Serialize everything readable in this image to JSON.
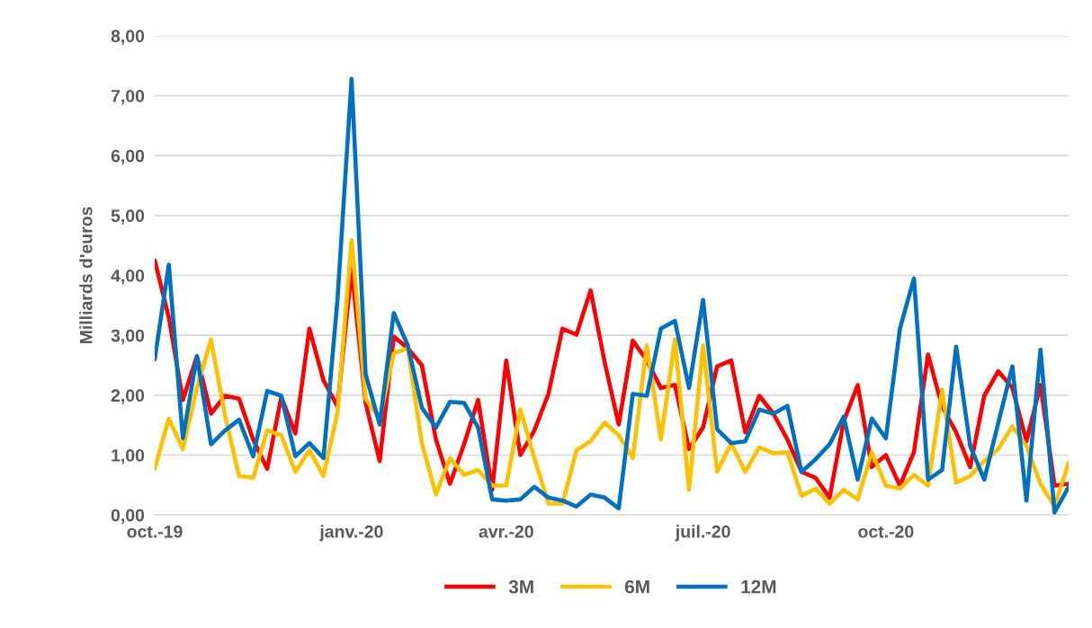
{
  "chart_data": {
    "type": "line",
    "ylabel": "Milliards d'euros",
    "categories": [
      "oct.-19",
      null,
      null,
      null,
      null,
      null,
      null,
      null,
      null,
      null,
      null,
      null,
      null,
      null,
      "janv.-20",
      null,
      null,
      null,
      null,
      null,
      null,
      null,
      null,
      null,
      null,
      "avr.-20",
      null,
      null,
      null,
      null,
      null,
      null,
      null,
      null,
      null,
      null,
      null,
      null,
      null,
      "juil.-20",
      null,
      null,
      null,
      null,
      null,
      null,
      null,
      null,
      null,
      null,
      null,
      null,
      "oct.-20",
      null,
      null,
      null,
      null,
      null,
      null,
      null,
      null,
      null,
      null,
      null,
      null,
      null
    ],
    "series": [
      {
        "name": "3M",
        "color": "#ff0000",
        "values": [
          4.25,
          3.3,
          1.92,
          2.65,
          1.69,
          1.99,
          1.94,
          1.26,
          0.77,
          1.97,
          1.36,
          3.11,
          2.25,
          1.81,
          4.1,
          1.87,
          0.9,
          2.98,
          2.78,
          2.5,
          1.26,
          0.52,
          1.18,
          1.92,
          0.42,
          2.58,
          1.0,
          1.41,
          2.02,
          3.11,
          3.01,
          3.75,
          2.55,
          1.51,
          2.91,
          2.58,
          2.12,
          2.17,
          1.1,
          1.46,
          2.48,
          2.58,
          1.38,
          1.99,
          1.69,
          1.26,
          0.72,
          0.62,
          0.29,
          1.56,
          2.17,
          0.8,
          1.0,
          0.49,
          1.05,
          2.68,
          1.81,
          1.38,
          0.8,
          1.99,
          2.4,
          2.12,
          1.23,
          2.17,
          0.49,
          0.52
        ]
      },
      {
        "name": "6M",
        "color": "#ffc000",
        "values": [
          0.77,
          1.61,
          1.1,
          2.12,
          2.93,
          1.66,
          0.65,
          0.62,
          1.41,
          1.33,
          0.72,
          1.08,
          0.65,
          1.71,
          4.59,
          1.94,
          1.61,
          2.7,
          2.78,
          1.2,
          0.34,
          0.95,
          0.67,
          0.75,
          0.49,
          0.49,
          1.76,
          0.95,
          0.19,
          0.19,
          1.08,
          1.23,
          1.54,
          1.33,
          0.95,
          2.83,
          1.26,
          2.93,
          0.42,
          2.83,
          0.72,
          1.2,
          0.72,
          1.13,
          1.03,
          1.05,
          0.32,
          0.44,
          0.19,
          0.42,
          0.26,
          1.05,
          0.49,
          0.44,
          0.67,
          0.49,
          2.09,
          0.54,
          0.65,
          0.9,
          1.1,
          1.48,
          1.15,
          0.52,
          0.14,
          0.87
        ]
      },
      {
        "name": "12M",
        "color": "#0070c0",
        "values": [
          2.6,
          4.18,
          1.28,
          2.65,
          1.18,
          1.41,
          1.59,
          0.98,
          2.07,
          1.99,
          0.98,
          1.2,
          0.95,
          3.6,
          7.28,
          2.35,
          1.51,
          3.37,
          2.83,
          1.79,
          1.46,
          1.89,
          1.87,
          1.46,
          0.26,
          0.24,
          0.26,
          0.47,
          0.29,
          0.24,
          0.14,
          0.34,
          0.29,
          0.11,
          2.02,
          1.99,
          3.11,
          3.24,
          2.12,
          3.59,
          1.43,
          1.2,
          1.23,
          1.76,
          1.69,
          1.82,
          0.72,
          0.93,
          1.18,
          1.64,
          0.59,
          1.61,
          1.28,
          3.11,
          3.95,
          0.59,
          0.75,
          2.81,
          1.15,
          0.59,
          1.54,
          2.48,
          0.24,
          2.76,
          0.04,
          0.47
        ]
      }
    ],
    "ylim": [
      0,
      8
    ],
    "yticks": [
      {
        "value": 0,
        "label": "0,00"
      },
      {
        "value": 1,
        "label": "1,00"
      },
      {
        "value": 2,
        "label": "2,00"
      },
      {
        "value": 3,
        "label": "3,00"
      },
      {
        "value": 4,
        "label": "4,00"
      },
      {
        "value": 5,
        "label": "5,00"
      },
      {
        "value": 6,
        "label": "6,00"
      },
      {
        "value": 7,
        "label": "7,00"
      },
      {
        "value": 8,
        "label": "8,00"
      }
    ],
    "grid": "y",
    "legend": "bottom",
    "marker": "none",
    "line_style": "solid"
  }
}
